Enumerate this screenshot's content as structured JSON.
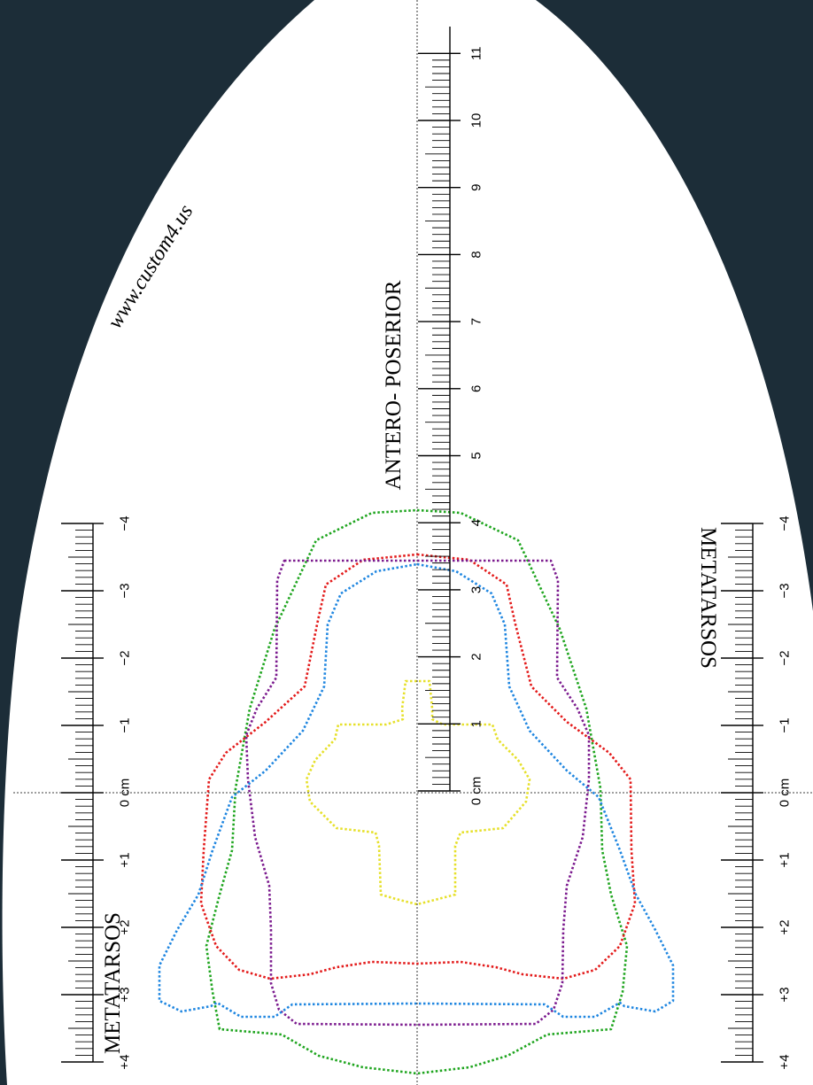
{
  "colors": {
    "background": "#1c2d38",
    "paper": "#ffffff",
    "ink": "#000000",
    "green": "#1fa51f",
    "red": "#e31b1b",
    "purple": "#7b1a8e",
    "blue": "#1f86e0",
    "yellow": "#e6e02a"
  },
  "watermark": "www.custom4.us",
  "main_ruler": {
    "title": "ANTERO- POSERIOR",
    "labels": [
      "0 cm",
      "1",
      "2",
      "3",
      "4",
      "5",
      "6",
      "7",
      "8",
      "9",
      "10",
      "11"
    ]
  },
  "left_ruler": {
    "title": "METATARSOS",
    "labels": [
      "−4",
      "−3",
      "−2",
      "−1",
      "0 cm",
      "+1",
      "+2",
      "+3",
      "+4"
    ]
  },
  "right_ruler": {
    "title": "METATARSOS",
    "labels": [
      "−4",
      "−3",
      "−2",
      "−1",
      "0 cm",
      "+1",
      "+2",
      "+3",
      "+4"
    ]
  },
  "outline_names": [
    "green-outline",
    "red-outline",
    "purple-outline",
    "blue-outline",
    "yellow-outline"
  ]
}
